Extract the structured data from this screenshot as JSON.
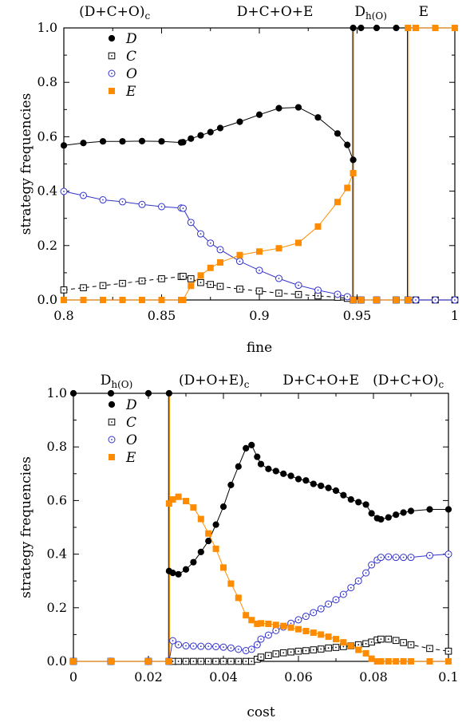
{
  "chart_data": [
    {
      "type": "line",
      "xlabel": "fine",
      "ylabel": "strategy frequencies",
      "xlim": [
        0.8,
        1.0
      ],
      "ylim": [
        0.0,
        1.0
      ],
      "xticks": [
        0.8,
        0.85,
        0.9,
        0.95,
        1.0
      ],
      "xtick_labels": [
        "0.8",
        "0.85",
        "0.9",
        "0.95",
        "1"
      ],
      "yticks": [
        0.0,
        0.2,
        0.4,
        0.6,
        0.8,
        1.0
      ],
      "ytick_labels": [
        "0.0",
        "0.2",
        "0.4",
        "0.6",
        "0.8",
        "1.0"
      ],
      "grid": false,
      "legend_position": "top-left",
      "phase_labels": [
        {
          "x": 0.826,
          "base": "(D+C+O)",
          "sub": "c"
        },
        {
          "x": 0.908,
          "base": "D+C+O+E",
          "sub": ""
        },
        {
          "x": 0.957,
          "base": "D",
          "sub": "h(O)"
        },
        {
          "x": 0.984,
          "base": "E",
          "sub": ""
        }
      ],
      "phase_boundaries": [
        {
          "x": 0.948,
          "color": "#000000"
        },
        {
          "x": 0.948,
          "color": "#ff8c00"
        },
        {
          "x": 0.976,
          "color": "#000000"
        },
        {
          "x": 0.976,
          "color": "#ff8c00"
        }
      ],
      "series": [
        {
          "name": "D",
          "marker": "filled-circle",
          "color": "#000000",
          "dashed": false,
          "x": [
            0.8,
            0.81,
            0.82,
            0.83,
            0.84,
            0.85,
            0.86,
            0.861,
            0.865,
            0.87,
            0.875,
            0.88,
            0.89,
            0.9,
            0.91,
            0.92,
            0.93,
            0.94,
            0.945,
            0.948
          ],
          "y": [
            0.568,
            0.577,
            0.583,
            0.583,
            0.584,
            0.583,
            0.579,
            0.58,
            0.593,
            0.605,
            0.617,
            0.632,
            0.655,
            0.681,
            0.705,
            0.708,
            0.671,
            0.612,
            0.57,
            0.515
          ],
          "x2": [
            0.948,
            0.952,
            0.96,
            0.97,
            0.976
          ],
          "y2": [
            1.0,
            1.0,
            1.0,
            1.0,
            1.0
          ],
          "x3": [
            0.976,
            0.98,
            0.99,
            1.0
          ],
          "y3": [
            0.0,
            0.0,
            0.0,
            0.0
          ]
        },
        {
          "name": "C",
          "marker": "open-square-dot",
          "color": "#000000",
          "dashed": true,
          "x": [
            0.8,
            0.81,
            0.82,
            0.83,
            0.84,
            0.85,
            0.86,
            0.861,
            0.865,
            0.87,
            0.875,
            0.88,
            0.89,
            0.9,
            0.91,
            0.92,
            0.93,
            0.94,
            0.945,
            0.948,
            0.952,
            0.96,
            0.97,
            0.976,
            0.98,
            0.99,
            1.0
          ],
          "y": [
            0.037,
            0.045,
            0.053,
            0.061,
            0.07,
            0.078,
            0.086,
            0.087,
            0.078,
            0.064,
            0.057,
            0.05,
            0.04,
            0.033,
            0.025,
            0.02,
            0.015,
            0.01,
            0.006,
            0.0,
            0.0,
            0.0,
            0.0,
            0.0,
            0.0,
            0.0,
            0.0
          ]
        },
        {
          "name": "O",
          "marker": "open-circle-dot",
          "color": "#3333cc",
          "dashed": false,
          "x": [
            0.8,
            0.81,
            0.82,
            0.83,
            0.84,
            0.85,
            0.86,
            0.861,
            0.865,
            0.87,
            0.875,
            0.88,
            0.89,
            0.9,
            0.91,
            0.92,
            0.93,
            0.94,
            0.945,
            0.948,
            0.952,
            0.96,
            0.97,
            0.976,
            0.98,
            0.99,
            1.0
          ],
          "y": [
            0.399,
            0.384,
            0.368,
            0.361,
            0.351,
            0.343,
            0.338,
            0.337,
            0.285,
            0.243,
            0.209,
            0.185,
            0.142,
            0.109,
            0.079,
            0.054,
            0.036,
            0.021,
            0.012,
            0.0,
            0.0,
            0.0,
            0.0,
            0.0,
            0.0,
            0.0,
            0.0
          ]
        },
        {
          "name": "E",
          "marker": "filled-square",
          "color": "#ff8c00",
          "dashed": false,
          "x": [
            0.8,
            0.81,
            0.82,
            0.83,
            0.84,
            0.85,
            0.86,
            0.861,
            0.865,
            0.87,
            0.875,
            0.88,
            0.89,
            0.9,
            0.91,
            0.92,
            0.93,
            0.94,
            0.945,
            0.948
          ],
          "y": [
            0.0,
            0.0,
            0.0,
            0.0,
            0.0,
            0.0,
            0.0,
            0.0,
            0.052,
            0.09,
            0.118,
            0.138,
            0.165,
            0.178,
            0.19,
            0.21,
            0.27,
            0.36,
            0.412,
            0.466
          ],
          "x2": [
            0.948,
            0.952,
            0.96,
            0.97,
            0.976
          ],
          "y2": [
            0.0,
            0.0,
            0.0,
            0.0,
            0.0
          ],
          "x3": [
            0.976,
            0.98,
            0.99,
            1.0
          ],
          "y3": [
            1.0,
            1.0,
            1.0,
            1.0
          ]
        }
      ]
    },
    {
      "type": "line",
      "xlabel": "cost",
      "ylabel": "strategy frequencies",
      "xlim": [
        0.0,
        0.1
      ],
      "ylim": [
        0.0,
        1.0
      ],
      "xticks": [
        0.0,
        0.02,
        0.04,
        0.06,
        0.08,
        0.1
      ],
      "xtick_labels": [
        "0",
        "0.02",
        "0.04",
        "0.06",
        "0.08",
        "0.1"
      ],
      "yticks": [
        0.0,
        0.2,
        0.4,
        0.6,
        0.8,
        1.0
      ],
      "ytick_labels": [
        "0.0",
        "0.2",
        "0.4",
        "0.6",
        "0.8",
        "1.0"
      ],
      "grid": false,
      "legend_position": "top-left-inside",
      "phase_labels": [
        {
          "x": 0.0115,
          "base": "D",
          "sub": "h(O)"
        },
        {
          "x": 0.0375,
          "base": "(D+O+E)",
          "sub": "c"
        },
        {
          "x": 0.066,
          "base": "D+C+O+E",
          "sub": ""
        },
        {
          "x": 0.0893,
          "base": "(D+C+O)",
          "sub": "c"
        }
      ],
      "phase_boundaries": [
        {
          "x": 0.0255,
          "color": "#000000"
        },
        {
          "x": 0.0255,
          "color": "#ff8c00"
        }
      ],
      "series": [
        {
          "name": "D",
          "marker": "filled-circle",
          "color": "#000000",
          "dashed": false,
          "x": [
            0.0,
            0.01,
            0.02,
            0.0255
          ],
          "y": [
            1.0,
            1.0,
            1.0,
            1.0
          ],
          "x2": [
            0.0255,
            0.0265,
            0.028,
            0.03,
            0.032,
            0.034,
            0.036,
            0.038,
            0.04,
            0.042,
            0.044,
            0.046,
            0.0475,
            0.049,
            0.05,
            0.052,
            0.054,
            0.056,
            0.058,
            0.06,
            0.062,
            0.064,
            0.066,
            0.068,
            0.07,
            0.072,
            0.074,
            0.076,
            0.078,
            0.0795,
            0.081,
            0.082,
            0.084,
            0.086,
            0.088,
            0.09,
            0.095,
            0.1
          ],
          "y2": [
            0.337,
            0.33,
            0.325,
            0.343,
            0.37,
            0.408,
            0.449,
            0.51,
            0.577,
            0.658,
            0.727,
            0.795,
            0.807,
            0.763,
            0.736,
            0.718,
            0.71,
            0.7,
            0.692,
            0.68,
            0.675,
            0.662,
            0.655,
            0.647,
            0.637,
            0.62,
            0.604,
            0.594,
            0.585,
            0.552,
            0.534,
            0.53,
            0.537,
            0.547,
            0.555,
            0.561,
            0.567,
            0.567
          ]
        },
        {
          "name": "C",
          "marker": "open-square-dot",
          "color": "#000000",
          "dashed": true,
          "x": [
            0.0,
            0.01,
            0.02,
            0.0255,
            0.0265,
            0.028,
            0.03,
            0.032,
            0.034,
            0.036,
            0.038,
            0.04,
            0.042,
            0.044,
            0.046,
            0.0475,
            0.049,
            0.05,
            0.052,
            0.054,
            0.056,
            0.058,
            0.06,
            0.062,
            0.064,
            0.066,
            0.068,
            0.07,
            0.072,
            0.074,
            0.076,
            0.078,
            0.0795,
            0.081,
            0.082,
            0.084,
            0.086,
            0.088,
            0.09,
            0.095,
            0.1
          ],
          "y": [
            0.0,
            0.0,
            0.0,
            0.0,
            0.0,
            0.0,
            0.0,
            0.0,
            0.0,
            0.0,
            0.0,
            0.0,
            0.0,
            0.0,
            0.0,
            0.0,
            0.008,
            0.016,
            0.022,
            0.028,
            0.032,
            0.035,
            0.038,
            0.04,
            0.043,
            0.046,
            0.05,
            0.052,
            0.055,
            0.058,
            0.062,
            0.066,
            0.072,
            0.08,
            0.083,
            0.083,
            0.078,
            0.07,
            0.062,
            0.048,
            0.038
          ]
        },
        {
          "name": "O",
          "marker": "open-circle-dot",
          "color": "#3333cc",
          "dashed": false,
          "x": [
            0.0,
            0.01,
            0.02,
            0.0255,
            0.0265,
            0.028,
            0.03,
            0.032,
            0.034,
            0.036,
            0.038,
            0.04,
            0.042,
            0.044,
            0.046,
            0.0475,
            0.049,
            0.05,
            0.052,
            0.054,
            0.056,
            0.058,
            0.06,
            0.062,
            0.064,
            0.066,
            0.068,
            0.07,
            0.072,
            0.074,
            0.076,
            0.078,
            0.0795,
            0.081,
            0.082,
            0.084,
            0.086,
            0.088,
            0.09,
            0.095,
            0.1
          ],
          "y": [
            0.0,
            0.0,
            0.0,
            0.0,
            0.077,
            0.062,
            0.058,
            0.057,
            0.056,
            0.056,
            0.055,
            0.053,
            0.05,
            0.045,
            0.04,
            0.045,
            0.062,
            0.083,
            0.098,
            0.115,
            0.128,
            0.142,
            0.155,
            0.168,
            0.182,
            0.196,
            0.214,
            0.23,
            0.25,
            0.275,
            0.3,
            0.33,
            0.36,
            0.378,
            0.388,
            0.39,
            0.388,
            0.388,
            0.388,
            0.395,
            0.4
          ]
        },
        {
          "name": "E",
          "marker": "filled-square",
          "color": "#ff8c00",
          "dashed": false,
          "x": [
            0.0,
            0.01,
            0.02,
            0.0255
          ],
          "y": [
            0.0,
            0.0,
            0.0,
            0.0
          ],
          "x2": [
            0.0255,
            0.0265,
            0.028,
            0.03,
            0.032,
            0.034,
            0.036,
            0.038,
            0.04,
            0.042,
            0.044,
            0.046,
            0.0475,
            0.049,
            0.05,
            0.052,
            0.054,
            0.056,
            0.058,
            0.06,
            0.062,
            0.064,
            0.066,
            0.068,
            0.07,
            0.072,
            0.074,
            0.076,
            0.078,
            0.0795,
            0.081,
            0.082,
            0.084,
            0.086,
            0.088,
            0.09,
            0.095,
            0.1
          ],
          "y2": [
            0.589,
            0.604,
            0.614,
            0.598,
            0.574,
            0.531,
            0.477,
            0.42,
            0.35,
            0.29,
            0.237,
            0.172,
            0.154,
            0.14,
            0.142,
            0.14,
            0.136,
            0.132,
            0.126,
            0.12,
            0.113,
            0.107,
            0.1,
            0.092,
            0.083,
            0.071,
            0.058,
            0.043,
            0.03,
            0.01,
            0.0,
            0.0,
            0.0,
            0.0,
            0.0,
            0.0,
            0.0,
            0.0
          ]
        }
      ]
    }
  ]
}
